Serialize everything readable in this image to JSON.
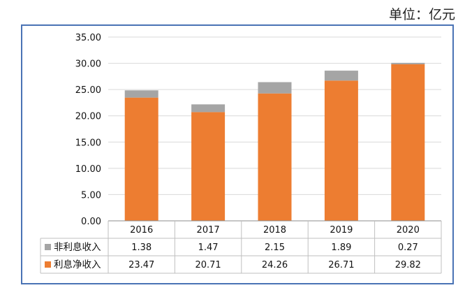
{
  "unit_label": "单位：亿元",
  "colors": {
    "interest": "#ed7d31",
    "non_interest": "#a5a5a5",
    "frame": "#4a73b5",
    "grid": "#d9d9d9"
  },
  "chart_data": {
    "type": "bar",
    "stacked": true,
    "categories": [
      "2016",
      "2017",
      "2018",
      "2019",
      "2020"
    ],
    "series": [
      {
        "name": "利息净收入",
        "color": "#ed7d31",
        "values": [
          23.47,
          20.71,
          24.26,
          26.71,
          29.82
        ]
      },
      {
        "name": "非利息收入",
        "color": "#a5a5a5",
        "values": [
          1.38,
          1.47,
          2.15,
          1.89,
          0.27
        ]
      }
    ],
    "ylim": [
      0,
      35
    ],
    "yticks": [
      "0.00",
      "5.00",
      "10.00",
      "15.00",
      "20.00",
      "25.00",
      "30.00",
      "35.00"
    ],
    "data_table": true,
    "table_rows": [
      {
        "label": "非利息收入",
        "color": "#a5a5a5",
        "values": [
          "1.38",
          "1.47",
          "2.15",
          "1.89",
          "0.27"
        ]
      },
      {
        "label": "利息净收入",
        "color": "#ed7d31",
        "values": [
          "23.47",
          "20.71",
          "24.26",
          "26.71",
          "29.82"
        ]
      }
    ]
  }
}
